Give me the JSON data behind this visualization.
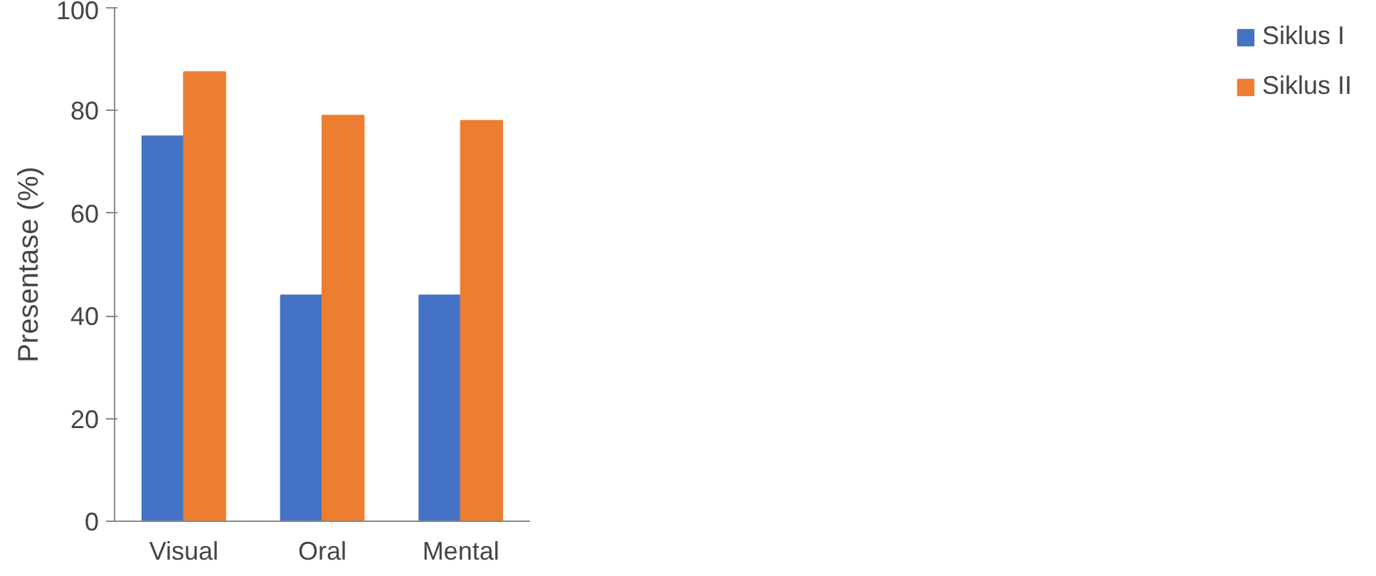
{
  "chart_data": {
    "type": "bar",
    "ylabel": "Presentase (%)",
    "categories": [
      "Visual",
      "Oral",
      "Mental"
    ],
    "series": [
      {
        "name": "Siklus I",
        "color": "#4472c4",
        "values": [
          75,
          44,
          44
        ]
      },
      {
        "name": "Siklus II",
        "color": "#ed7d31",
        "values": [
          87.5,
          79,
          78
        ]
      }
    ],
    "ylim": [
      0,
      100
    ],
    "yticks": [
      0,
      20,
      40,
      60,
      80,
      100
    ],
    "grid": false,
    "legend": "right"
  }
}
